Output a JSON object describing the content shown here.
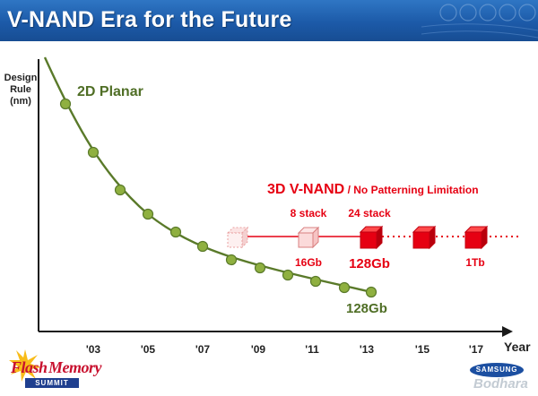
{
  "title": "V-NAND Era for the Future",
  "axis": {
    "y_label_lines": [
      "Design",
      "Rule",
      "(nm)"
    ],
    "x_label": "Year",
    "x_ticks": [
      "'03",
      "'05",
      "'07",
      "'09",
      "'11",
      "'13",
      "'15",
      "'17"
    ]
  },
  "planar": {
    "label": "2D Planar",
    "end_label": "128Gb",
    "color": "#5a7a2a",
    "dot_color": "#8fb040"
  },
  "vnand": {
    "title_main": "3D V-NAND",
    "title_sep": " / ",
    "title_sub": "No Patterning Limitation",
    "color": "#e60012",
    "stages": [
      {
        "top": "",
        "bottom": ""
      },
      {
        "top": "8 stack",
        "bottom": "16Gb"
      },
      {
        "top": "24 stack",
        "bottom": "128Gb"
      },
      {
        "top": "",
        "bottom": ""
      },
      {
        "top": "",
        "bottom": "1Tb"
      }
    ]
  },
  "logos": {
    "flash_memory_part1": "Flash",
    "flash_memory_part2": "Memory",
    "flash_memory_summit": "SUMMIT",
    "samsung": "SAMSUNG",
    "watermark": "Bodhara"
  }
}
